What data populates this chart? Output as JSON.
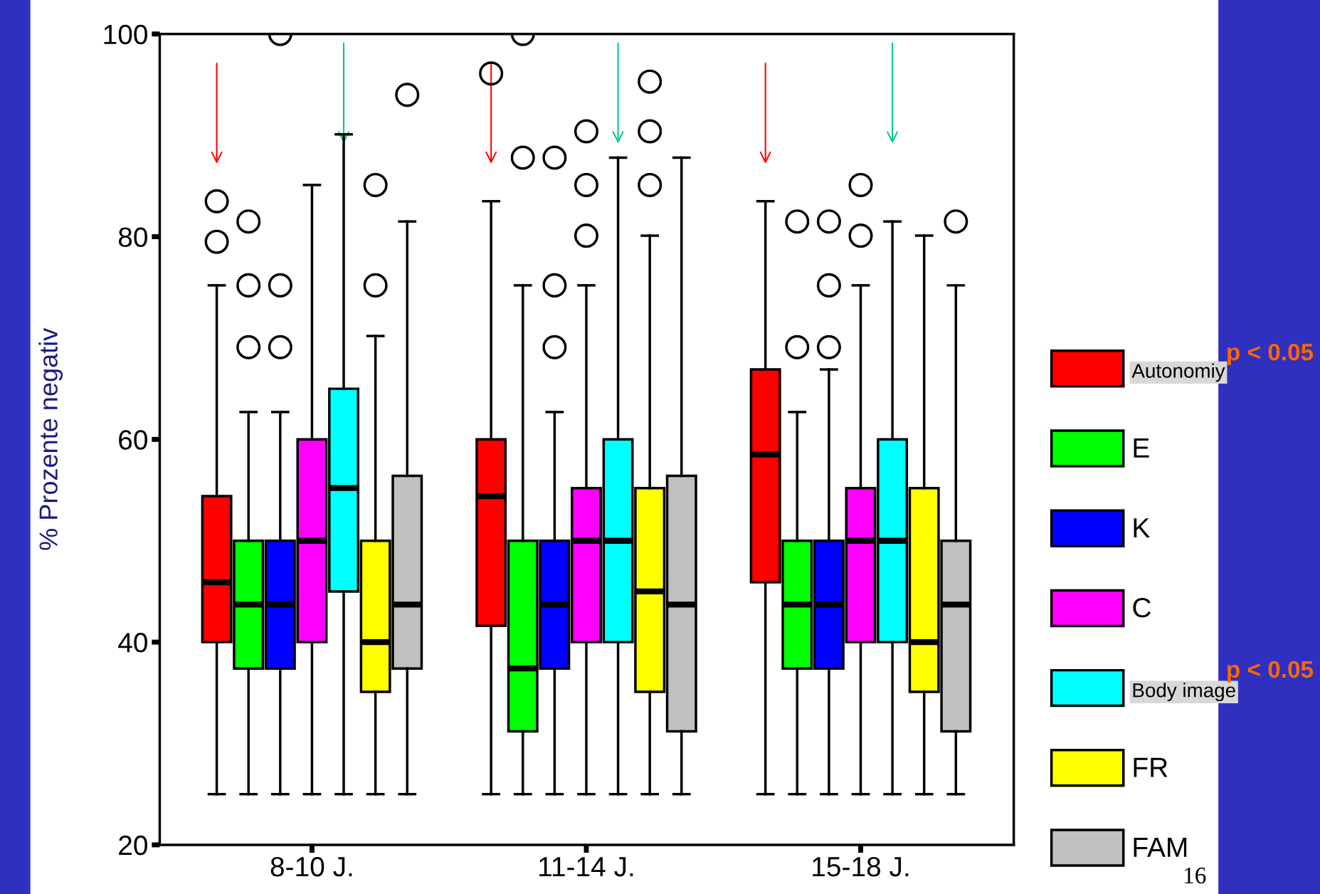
{
  "chart_data": {
    "type": "box",
    "ylabel": "% Prozente negativ",
    "categories": [
      "8-10 J.",
      "11-14 J.",
      "15-18 J."
    ],
    "ylim": [
      20,
      100
    ],
    "yticks": [
      20,
      40,
      60,
      80,
      100
    ],
    "grid": false,
    "legend": "right",
    "annotations": [
      "p < 0.05",
      "p < 0.05",
      "16"
    ],
    "series": [
      {
        "name": "Autonomiy",
        "color": "#ff0000",
        "boxes": [
          {
            "low": 25,
            "q1": 40,
            "median": 45.9,
            "q3": 54.4,
            "high": 75.2,
            "outliers": [
              79.5,
              83.5
            ]
          },
          {
            "low": 25,
            "q1": 41.6,
            "median": 54.4,
            "q3": 60,
            "high": 83.5,
            "outliers": [
              96.1
            ]
          },
          {
            "low": 25,
            "q1": 45.9,
            "median": 58.5,
            "q3": 66.9,
            "high": 83.5
          }
        ]
      },
      {
        "name": "E",
        "color": "#00ff00",
        "boxes": [
          {
            "low": 25,
            "q1": 37.4,
            "median": 43.7,
            "q3": 50,
            "high": 62.7,
            "outliers": [
              69.1,
              75.2,
              81.5
            ]
          },
          {
            "low": 25,
            "q1": 31.2,
            "median": 37.4,
            "q3": 50,
            "high": 75.2,
            "outliers": [
              87.8,
              100
            ]
          },
          {
            "low": 25,
            "q1": 37.4,
            "median": 43.7,
            "q3": 50,
            "high": 62.7,
            "outliers": [
              69.1,
              81.5
            ]
          }
        ]
      },
      {
        "name": "K",
        "color": "#0000ff",
        "boxes": [
          {
            "low": 25,
            "q1": 37.4,
            "median": 43.7,
            "q3": 50,
            "high": 62.7,
            "outliers": [
              69.1,
              75.2,
              100
            ]
          },
          {
            "low": 25,
            "q1": 37.4,
            "median": 43.7,
            "q3": 50,
            "high": 62.7,
            "outliers": [
              69.1,
              75.2,
              87.8
            ]
          },
          {
            "low": 25,
            "q1": 37.4,
            "median": 43.7,
            "q3": 50,
            "high": 66.9,
            "outliers": [
              69.1,
              75.2,
              81.5
            ]
          }
        ]
      },
      {
        "name": "C",
        "color": "#ff00ff",
        "boxes": [
          {
            "low": 25,
            "q1": 40,
            "median": 50,
            "q3": 60,
            "high": 85.1
          },
          {
            "low": 25,
            "q1": 40,
            "median": 50,
            "q3": 55.2,
            "high": 75.2,
            "outliers": [
              80.1,
              85.1,
              90.4
            ]
          },
          {
            "low": 25,
            "q1": 40,
            "median": 50,
            "q3": 55.2,
            "high": 75.2,
            "outliers": [
              80.1,
              85.1
            ]
          }
        ]
      },
      {
        "name": "Body image",
        "color": "#00ffff",
        "boxes": [
          {
            "low": 25,
            "q1": 45,
            "median": 55.2,
            "q3": 65,
            "high": 90.1
          },
          {
            "low": 25,
            "q1": 40,
            "median": 50,
            "q3": 60,
            "high": 87.8
          },
          {
            "low": 25,
            "q1": 40,
            "median": 50,
            "q3": 60,
            "high": 81.5
          }
        ]
      },
      {
        "name": "FR",
        "color": "#ffff00",
        "boxes": [
          {
            "low": 25,
            "q1": 35.1,
            "median": 40,
            "q3": 50,
            "high": 70.2,
            "outliers": [
              75.2,
              85.1
            ]
          },
          {
            "low": 25,
            "q1": 35.1,
            "median": 45,
            "q3": 55.2,
            "high": 80.1,
            "outliers": [
              85.1,
              90.4,
              95.3
            ]
          },
          {
            "low": 25,
            "q1": 35.1,
            "median": 40,
            "q3": 55.2,
            "high": 80.1
          }
        ]
      },
      {
        "name": "FAM",
        "color": "#c0c0c0",
        "boxes": [
          {
            "low": 25,
            "q1": 37.4,
            "median": 43.7,
            "q3": 56.4,
            "high": 81.5,
            "outliers": [
              94
            ]
          },
          {
            "low": 25,
            "q1": 31.2,
            "median": 43.7,
            "q3": 56.4,
            "high": 87.8
          },
          {
            "low": 25,
            "q1": 31.2,
            "median": 43.7,
            "q3": 50,
            "high": 75.2,
            "outliers": [
              81.5
            ]
          }
        ]
      }
    ]
  }
}
